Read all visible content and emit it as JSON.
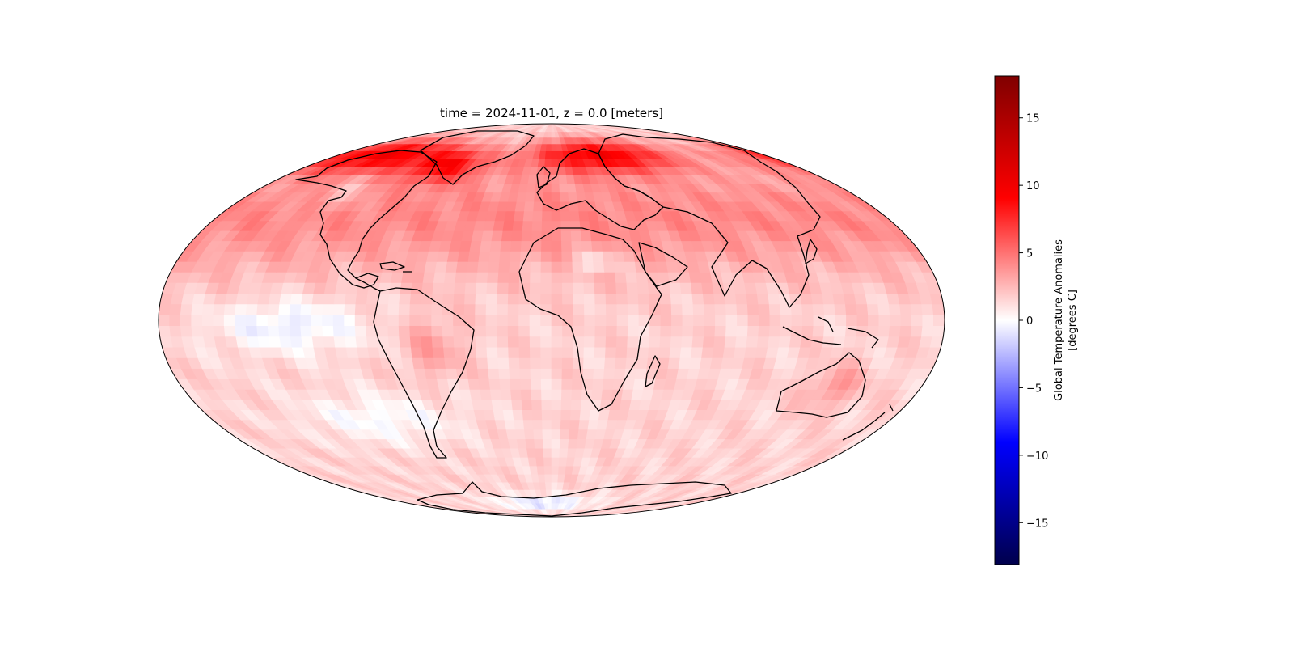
{
  "title": "time = 2024-11-01, z = 0.0 [meters]",
  "colormap": {
    "name": "seismic",
    "stops": [
      "#00004c",
      "#0000ff",
      "#ffffff",
      "#ff0000",
      "#800000"
    ],
    "vmin": -18.1,
    "vmax": 18.1
  },
  "colorbar": {
    "label_line1": "Global Temperature Anomalies",
    "label_line2": "[degrees C]",
    "ticks": [
      15,
      10,
      5,
      0,
      -5,
      -10,
      -15
    ],
    "tick_labels": [
      "15",
      "10",
      "5",
      "0",
      "−5",
      "−10",
      "−15"
    ]
  },
  "map": {
    "projection": "mollweide",
    "variable": "temperature anomaly (degrees C)"
  }
}
